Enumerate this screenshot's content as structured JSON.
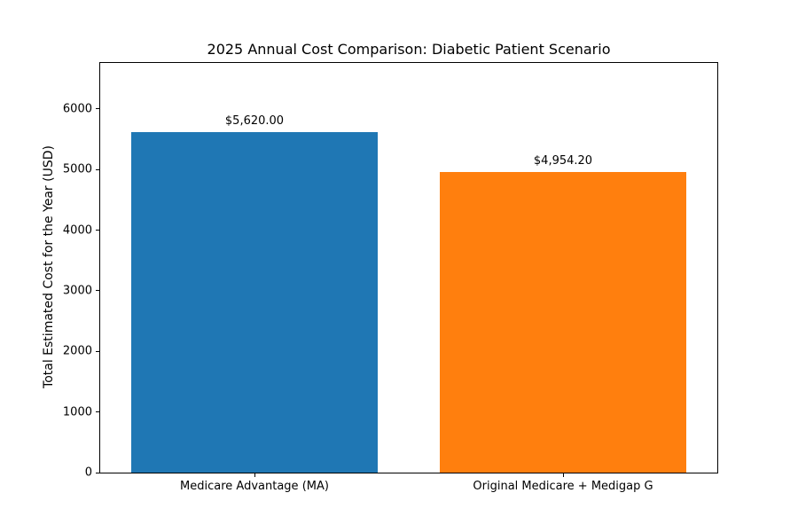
{
  "chart_data": {
    "type": "bar",
    "title": "2025 Annual Cost Comparison: Diabetic Patient Scenario",
    "ylabel": "Total Estimated Cost for the Year (USD)",
    "xlabel": "",
    "categories": [
      "Medicare Advantage (MA)",
      "Original Medicare + Medigap G"
    ],
    "values": [
      5620.0,
      4954.2
    ],
    "bar_labels": [
      "$5,620.00",
      "$4,954.20"
    ],
    "bar_colors": [
      "#1f77b4",
      "#ff7f0e"
    ],
    "yticks": [
      0,
      1000,
      2000,
      3000,
      4000,
      5000,
      6000
    ],
    "ylim": [
      0,
      6760
    ],
    "grid": false,
    "legend_position": "none",
    "background_color": "#ffffff",
    "spine_color": "#000000"
  }
}
